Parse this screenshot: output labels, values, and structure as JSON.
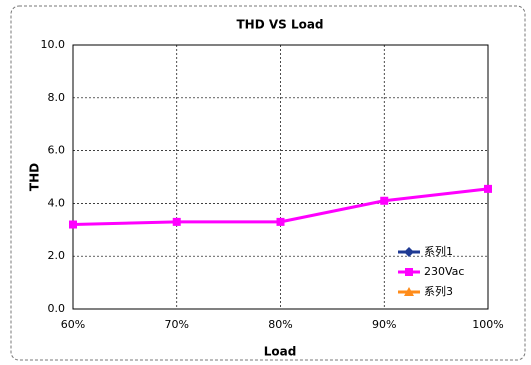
{
  "chart_data": {
    "type": "line",
    "title": "THD  VS  Load",
    "x_label": "Load",
    "y_label": "THD",
    "categories": [
      "60%",
      "70%",
      "80%",
      "90%",
      "100%"
    ],
    "series": [
      {
        "name": "系列1",
        "color": "#1f3a93",
        "marker": "diamond",
        "values": [
          null,
          null,
          null,
          null,
          null
        ]
      },
      {
        "name": "230Vac",
        "color": "#ff00ff",
        "marker": "square",
        "values": [
          3.2,
          3.3,
          3.3,
          4.1,
          4.55
        ]
      },
      {
        "name": "系列3",
        "color": "#ff8c1a",
        "marker": "triangle",
        "values": [
          null,
          null,
          null,
          null,
          null
        ]
      }
    ],
    "ylim": [
      0,
      10
    ],
    "yticks": [
      {
        "value": 0,
        "label": "0.0"
      },
      {
        "value": 2,
        "label": "2.0"
      },
      {
        "value": 4,
        "label": "4.0"
      },
      {
        "value": 6,
        "label": "6.0"
      },
      {
        "value": 8,
        "label": "8.0"
      },
      {
        "value": 10,
        "label": "10.0"
      }
    ],
    "grid": true,
    "legend": "lower right"
  }
}
